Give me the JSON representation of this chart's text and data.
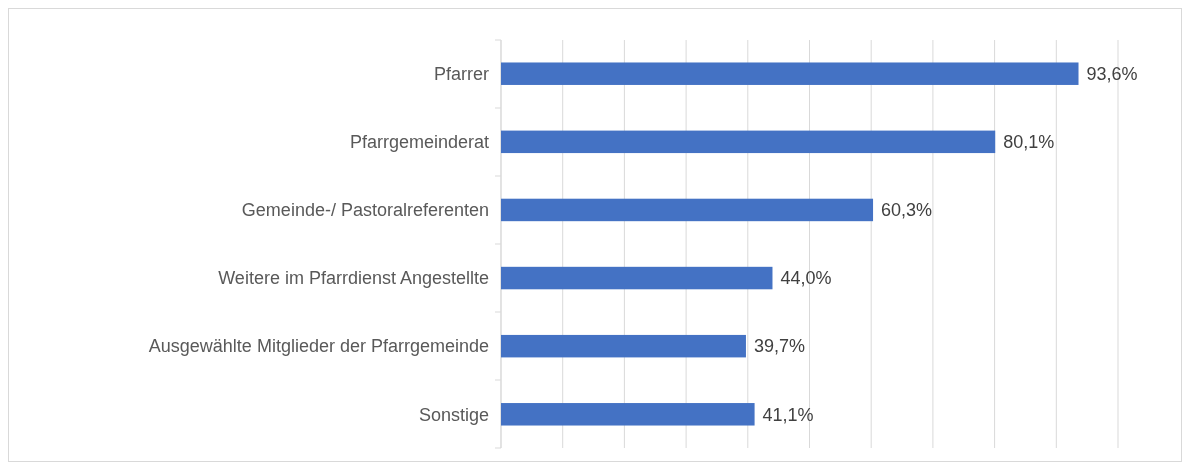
{
  "chart_data": {
    "type": "bar",
    "orientation": "horizontal",
    "categories": [
      "Pfarrer",
      "Pfarrgemeinderat",
      "Gemeinde-/ Pastoralreferenten",
      "Weitere im Pfarrdienst Angestellte",
      "Ausgewählte Mitglieder der Pfarrgemeinde",
      "Sonstige"
    ],
    "values": [
      93.6,
      80.1,
      60.3,
      44.0,
      39.7,
      41.1
    ],
    "value_labels": [
      "93,6%",
      "80,1%",
      "60,3%",
      "44,0%",
      "39,7%",
      "41,1%"
    ],
    "color": "#4472c4",
    "xlim": [
      0,
      100
    ],
    "xticks": [
      {
        "value": 0,
        "label": null
      },
      {
        "value": 10,
        "label": null
      },
      {
        "value": 20,
        "label": null
      },
      {
        "value": 30,
        "label": null
      },
      {
        "value": 40,
        "label": null
      },
      {
        "value": 50,
        "label": null
      },
      {
        "value": 60,
        "label": null
      },
      {
        "value": 70,
        "label": null
      },
      {
        "value": 80,
        "label": null
      },
      {
        "value": 90,
        "label": null
      },
      {
        "value": 100,
        "label": null
      }
    ],
    "grid": "x",
    "tick_labels": "y"
  }
}
